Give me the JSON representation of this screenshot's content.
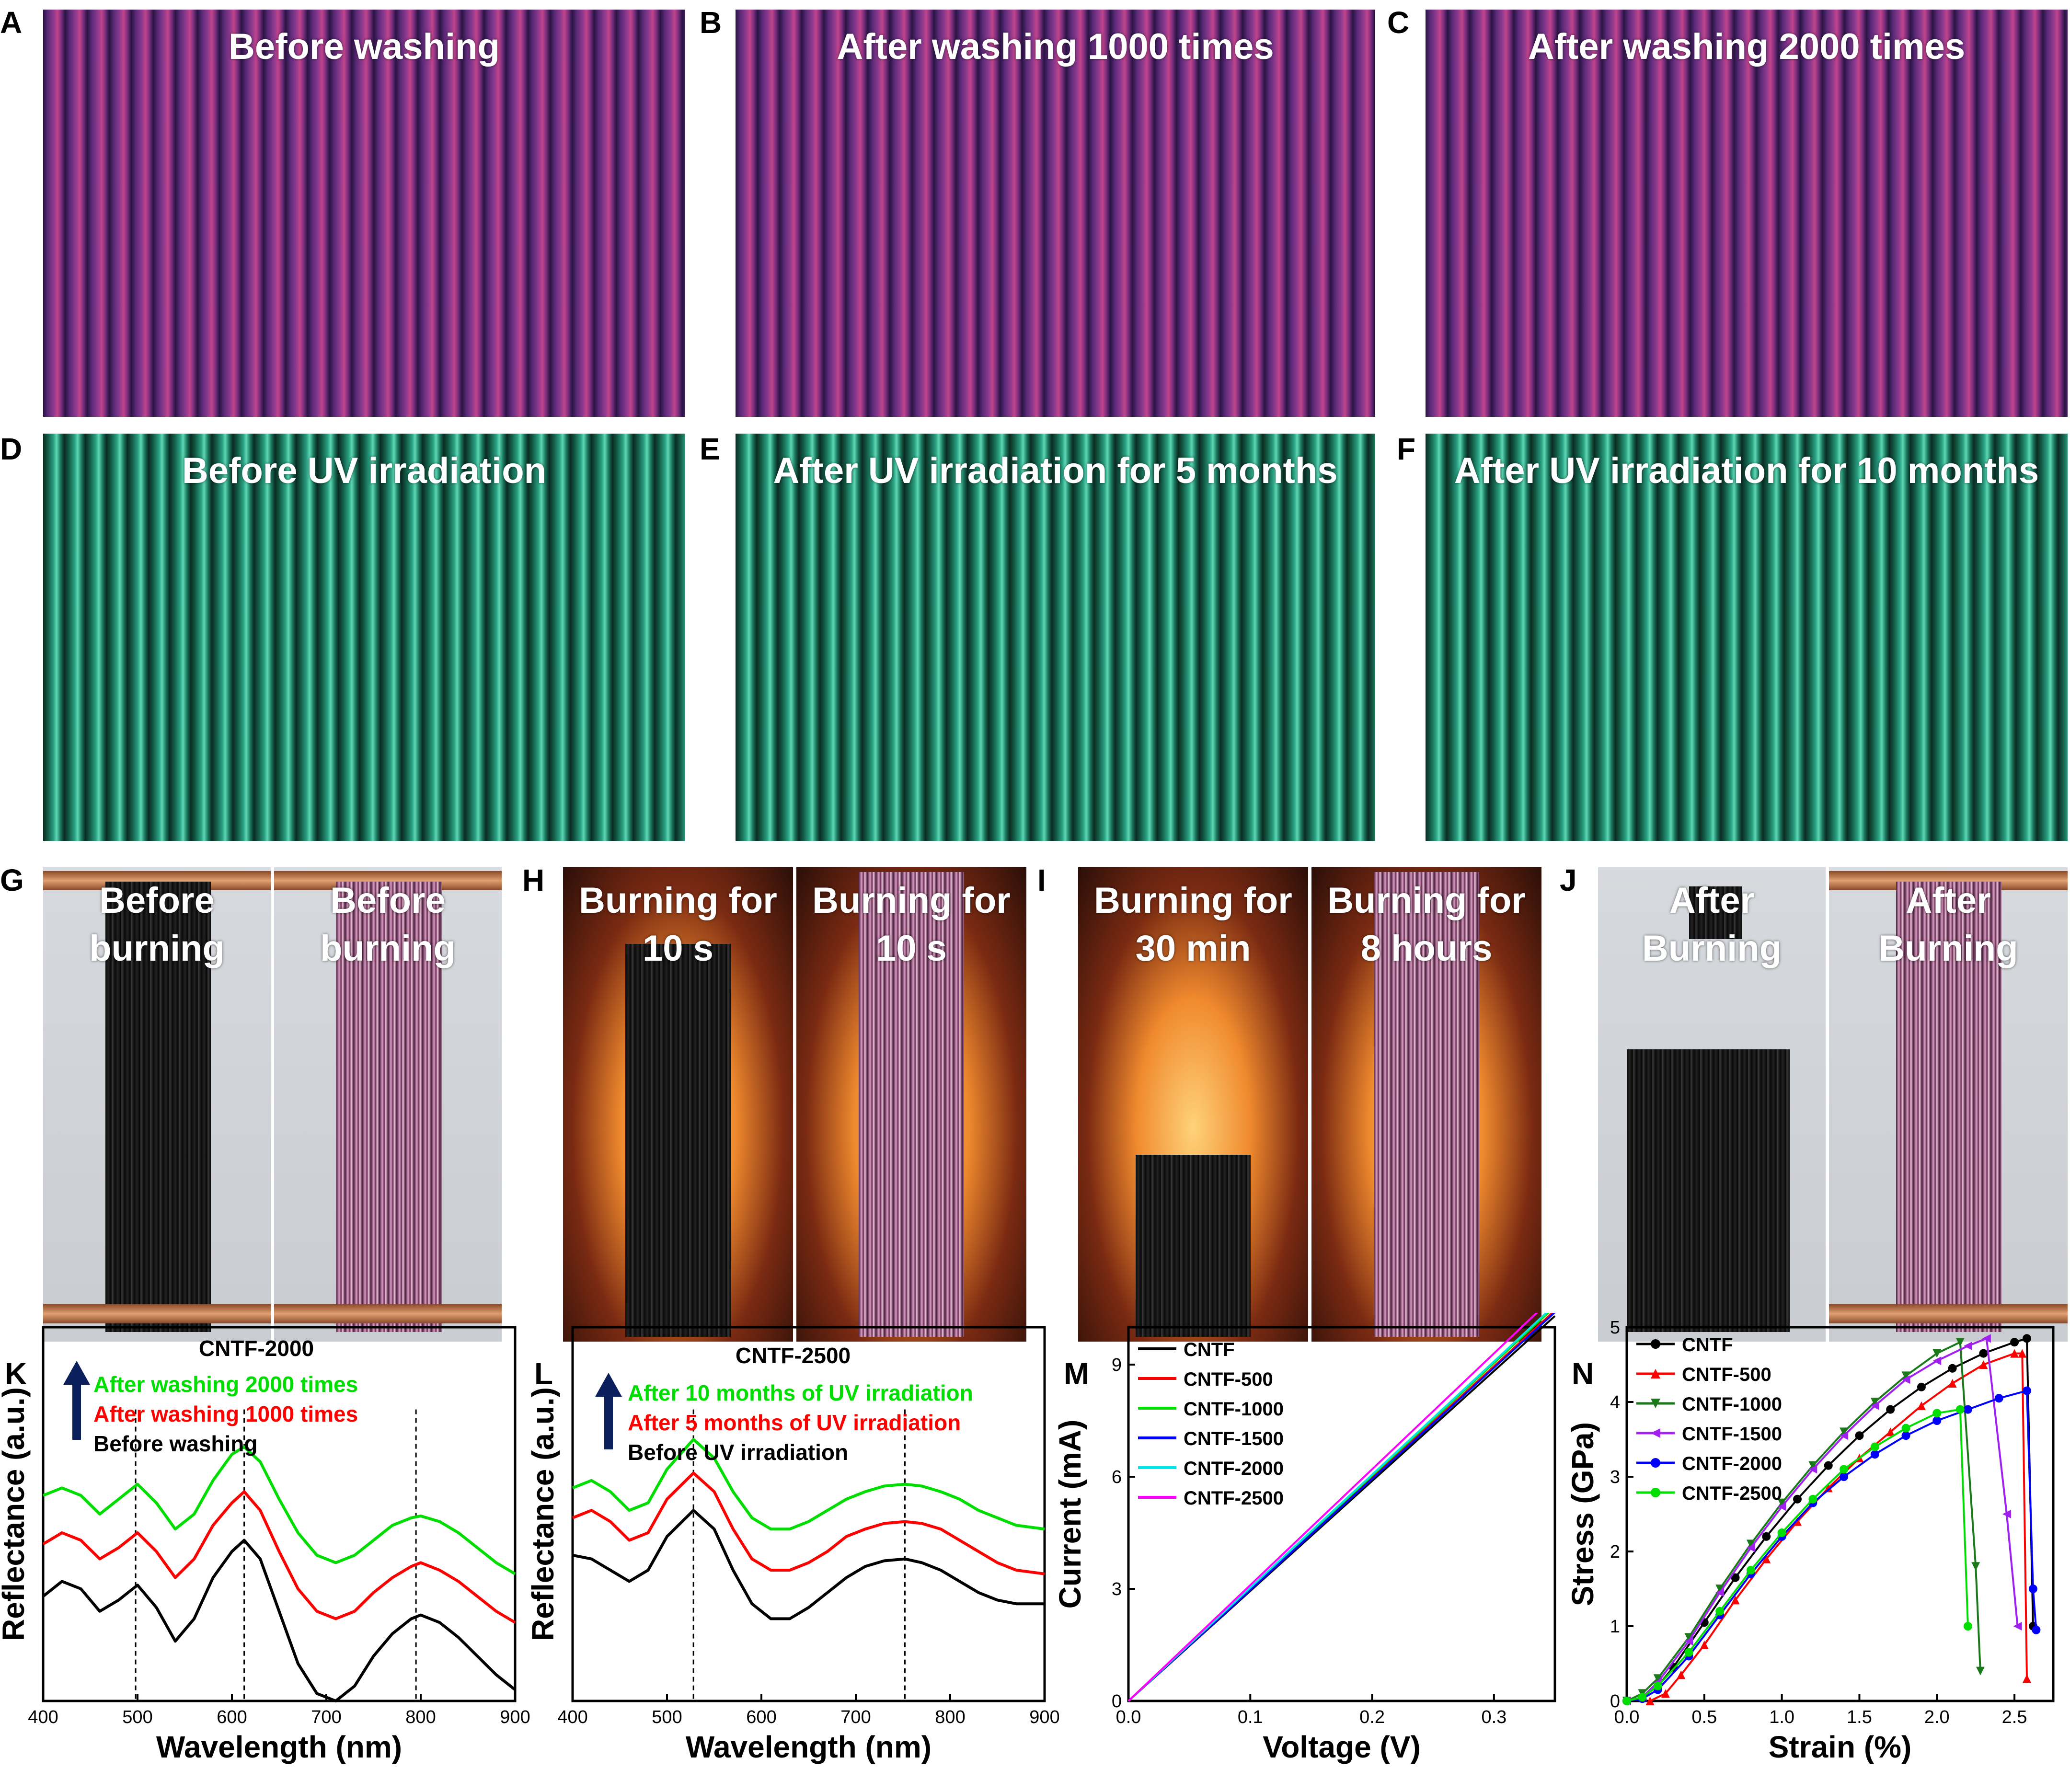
{
  "panels": {
    "A": {
      "letter": "A",
      "title": "Before washing"
    },
    "B": {
      "letter": "B",
      "title": "After washing 1000 times"
    },
    "C": {
      "letter": "C",
      "title": "After washing 2000 times"
    },
    "D": {
      "letter": "D",
      "title": "Before UV irradiation"
    },
    "E": {
      "letter": "E",
      "title": "After UV irradiation for 5 months"
    },
    "F": {
      "letter": "F",
      "title": "After UV irradiation for 10 months"
    },
    "G": {
      "letter": "G",
      "left_title": "Before\nburning",
      "right_title": "Before\nburning"
    },
    "H": {
      "letter": "H",
      "left_title": "Burning for\n10 s",
      "right_title": "Burning for\n10 s"
    },
    "I": {
      "letter": "I",
      "left_title": "Burning for\n30 min",
      "right_title": "Burning for\n8 hours"
    },
    "J": {
      "letter": "J",
      "left_title": "After\nBurning",
      "right_title": "After\nBurning"
    },
    "K": {
      "letter": "K"
    },
    "L": {
      "letter": "L"
    },
    "M": {
      "letter": "M"
    },
    "N": {
      "letter": "N"
    }
  },
  "colors": {
    "black": "#000000",
    "red": "#ff0000",
    "green": "#00dd00",
    "blue": "#0000ff",
    "cyan": "#00e5e5",
    "magenta": "#ff00ff",
    "navy": "#0a1f5c",
    "violet": "#a020f0",
    "dkgreen": "#1a7a1a"
  },
  "chart_data": [
    {
      "panel": "K",
      "type": "line",
      "title": "CNTF-2000",
      "xlabel": "Wavelength (nm)",
      "ylabel": "Reflectance (a.u.)",
      "xlim": [
        400,
        900
      ],
      "xticks": [
        400,
        500,
        600,
        700,
        800,
        900
      ],
      "ylim": [
        0,
        10
      ],
      "dashed_lines_x": [
        498,
        613,
        795
      ],
      "legend": [
        {
          "label": "After washing 2000 times",
          "color": "#00dd00"
        },
        {
          "label": "After washing 1000 times",
          "color": "#ff0000"
        },
        {
          "label": "Before washing",
          "color": "#000000"
        }
      ],
      "series": [
        {
          "color": "#00dd00",
          "x": [
            400,
            420,
            440,
            460,
            480,
            500,
            520,
            540,
            560,
            580,
            600,
            613,
            630,
            650,
            670,
            690,
            710,
            730,
            750,
            770,
            790,
            800,
            820,
            840,
            860,
            880,
            900
          ],
          "values": [
            5.5,
            5.7,
            5.5,
            5.0,
            5.4,
            5.8,
            5.3,
            4.6,
            5.0,
            5.9,
            6.6,
            6.8,
            6.4,
            5.4,
            4.5,
            3.9,
            3.7,
            3.9,
            4.3,
            4.7,
            4.9,
            4.95,
            4.8,
            4.5,
            4.1,
            3.7,
            3.4
          ]
        },
        {
          "color": "#ff0000",
          "x": [
            400,
            420,
            440,
            460,
            480,
            500,
            520,
            540,
            560,
            580,
            600,
            613,
            630,
            650,
            670,
            690,
            710,
            730,
            750,
            770,
            790,
            800,
            820,
            840,
            860,
            880,
            900
          ],
          "values": [
            4.2,
            4.5,
            4.3,
            3.8,
            4.1,
            4.5,
            4.0,
            3.3,
            3.8,
            4.7,
            5.3,
            5.6,
            5.1,
            4.0,
            3.0,
            2.4,
            2.2,
            2.4,
            2.9,
            3.3,
            3.6,
            3.7,
            3.5,
            3.2,
            2.8,
            2.4,
            2.1
          ]
        },
        {
          "color": "#000000",
          "x": [
            400,
            420,
            440,
            460,
            480,
            500,
            520,
            540,
            560,
            580,
            600,
            613,
            630,
            650,
            670,
            690,
            710,
            730,
            750,
            770,
            790,
            800,
            820,
            840,
            860,
            880,
            900
          ],
          "values": [
            2.8,
            3.2,
            3.0,
            2.4,
            2.7,
            3.1,
            2.5,
            1.6,
            2.2,
            3.3,
            4.0,
            4.3,
            3.8,
            2.4,
            1.0,
            0.2,
            0.0,
            0.4,
            1.2,
            1.8,
            2.2,
            2.3,
            2.1,
            1.7,
            1.2,
            0.7,
            0.3
          ]
        }
      ]
    },
    {
      "panel": "L",
      "type": "line",
      "title": "CNTF-2500",
      "xlabel": "Wavelength (nm)",
      "ylabel": "Reflectance (a.u.)",
      "xlim": [
        400,
        900
      ],
      "xticks": [
        400,
        500,
        600,
        700,
        800,
        900
      ],
      "ylim": [
        0,
        10
      ],
      "dashed_lines_x": [
        528,
        752
      ],
      "legend": [
        {
          "label": "After 10 months of UV irradiation",
          "color": "#00dd00"
        },
        {
          "label": "After 5 months of UV irradiation",
          "color": "#ff0000"
        },
        {
          "label": "Before UV irradiation",
          "color": "#000000"
        }
      ],
      "series": [
        {
          "color": "#00dd00",
          "x": [
            400,
            420,
            440,
            460,
            480,
            500,
            528,
            550,
            570,
            590,
            610,
            630,
            650,
            670,
            690,
            710,
            730,
            752,
            770,
            790,
            810,
            830,
            850,
            870,
            900
          ],
          "values": [
            5.7,
            5.9,
            5.6,
            5.1,
            5.3,
            6.2,
            7.0,
            6.5,
            5.6,
            4.9,
            4.6,
            4.6,
            4.8,
            5.1,
            5.4,
            5.6,
            5.75,
            5.8,
            5.75,
            5.6,
            5.4,
            5.1,
            4.9,
            4.7,
            4.6
          ]
        },
        {
          "color": "#ff0000",
          "x": [
            400,
            420,
            440,
            460,
            480,
            500,
            528,
            550,
            570,
            590,
            610,
            630,
            650,
            670,
            690,
            710,
            730,
            752,
            770,
            790,
            810,
            830,
            850,
            870,
            900
          ],
          "values": [
            4.9,
            5.1,
            4.8,
            4.3,
            4.5,
            5.4,
            6.1,
            5.6,
            4.6,
            3.8,
            3.5,
            3.5,
            3.7,
            4.0,
            4.4,
            4.6,
            4.75,
            4.8,
            4.75,
            4.6,
            4.3,
            4.0,
            3.7,
            3.5,
            3.4
          ]
        },
        {
          "color": "#000000",
          "x": [
            400,
            420,
            440,
            460,
            480,
            500,
            528,
            550,
            570,
            590,
            610,
            630,
            650,
            670,
            690,
            710,
            730,
            752,
            770,
            790,
            810,
            830,
            850,
            870,
            900
          ],
          "values": [
            3.9,
            3.8,
            3.5,
            3.2,
            3.5,
            4.4,
            5.1,
            4.6,
            3.5,
            2.6,
            2.2,
            2.2,
            2.5,
            2.9,
            3.3,
            3.6,
            3.75,
            3.8,
            3.7,
            3.5,
            3.2,
            2.9,
            2.7,
            2.6,
            2.6
          ]
        }
      ]
    },
    {
      "panel": "M",
      "type": "line",
      "xlabel": "Voltage (V)",
      "ylabel": "Current (mA)",
      "xlim": [
        0.0,
        0.35
      ],
      "ylim": [
        0,
        10
      ],
      "xticks": [
        0.0,
        0.1,
        0.2,
        0.3
      ],
      "yticks": [
        0,
        3,
        6,
        9
      ],
      "series": [
        {
          "name": "CNTF",
          "color": "#000000",
          "x": [
            0,
            0.35
          ],
          "values": [
            0,
            10.3
          ]
        },
        {
          "name": "CNTF-500",
          "color": "#ff0000",
          "x": [
            0,
            0.35
          ],
          "values": [
            0,
            10.45
          ]
        },
        {
          "name": "CNTF-1000",
          "color": "#00dd00",
          "x": [
            0,
            0.35
          ],
          "values": [
            0,
            10.55
          ]
        },
        {
          "name": "CNTF-1500",
          "color": "#0000ff",
          "x": [
            0,
            0.35
          ],
          "values": [
            0,
            10.4
          ]
        },
        {
          "name": "CNTF-2000",
          "color": "#00e5e5",
          "x": [
            0,
            0.35
          ],
          "values": [
            0,
            10.6
          ]
        },
        {
          "name": "CNTF-2500",
          "color": "#ff00ff",
          "x": [
            0,
            0.35
          ],
          "values": [
            0,
            10.85
          ]
        }
      ]
    },
    {
      "panel": "N",
      "type": "line",
      "xlabel": "Strain (%)",
      "ylabel": "Stress (GPa)",
      "xlim": [
        0.0,
        2.75
      ],
      "ylim": [
        0,
        5
      ],
      "xticks": [
        0.0,
        0.5,
        1.0,
        1.5,
        2.0,
        2.5
      ],
      "yticks": [
        0,
        1,
        2,
        3,
        4,
        5
      ],
      "series": [
        {
          "name": "CNTF",
          "color": "#000000",
          "marker": "circle",
          "x": [
            0.0,
            0.1,
            0.2,
            0.3,
            0.5,
            0.7,
            0.9,
            1.1,
            1.3,
            1.5,
            1.7,
            1.9,
            2.1,
            2.3,
            2.5,
            2.58,
            2.62
          ],
          "values": [
            0,
            0.05,
            0.2,
            0.45,
            1.05,
            1.65,
            2.2,
            2.7,
            3.15,
            3.55,
            3.9,
            4.2,
            4.45,
            4.65,
            4.8,
            4.85,
            1.0
          ]
        },
        {
          "name": "CNTF-500",
          "color": "#ff0000",
          "marker": "triangle-up",
          "x": [
            0.15,
            0.25,
            0.35,
            0.5,
            0.7,
            0.9,
            1.1,
            1.3,
            1.5,
            1.7,
            1.9,
            2.1,
            2.3,
            2.5,
            2.55,
            2.58
          ],
          "values": [
            0,
            0.1,
            0.35,
            0.75,
            1.35,
            1.9,
            2.4,
            2.85,
            3.25,
            3.6,
            3.95,
            4.25,
            4.5,
            4.65,
            4.65,
            0.3
          ]
        },
        {
          "name": "CNTF-1000",
          "color": "#1a7a1a",
          "marker": "triangle-down",
          "x": [
            0.0,
            0.1,
            0.2,
            0.4,
            0.6,
            0.8,
            1.0,
            1.2,
            1.4,
            1.6,
            1.8,
            2.0,
            2.15,
            2.25,
            2.28
          ],
          "values": [
            0,
            0.1,
            0.3,
            0.85,
            1.5,
            2.1,
            2.65,
            3.15,
            3.6,
            4.0,
            4.35,
            4.65,
            4.8,
            1.8,
            0.4
          ]
        },
        {
          "name": "CNTF-1500",
          "color": "#a020f0",
          "marker": "triangle-left",
          "x": [
            0.0,
            0.1,
            0.2,
            0.4,
            0.6,
            0.8,
            1.0,
            1.2,
            1.4,
            1.6,
            1.8,
            2.0,
            2.2,
            2.32,
            2.45,
            2.52
          ],
          "values": [
            0,
            0.05,
            0.25,
            0.8,
            1.45,
            2.05,
            2.6,
            3.1,
            3.55,
            3.95,
            4.3,
            4.55,
            4.75,
            4.85,
            2.5,
            1.0
          ]
        },
        {
          "name": "CNTF-2000",
          "color": "#0000ff",
          "marker": "circle",
          "x": [
            0.0,
            0.1,
            0.2,
            0.4,
            0.6,
            0.8,
            1.0,
            1.2,
            1.4,
            1.6,
            1.8,
            2.0,
            2.2,
            2.4,
            2.58,
            2.62,
            2.64
          ],
          "values": [
            0,
            0.03,
            0.15,
            0.6,
            1.15,
            1.7,
            2.2,
            2.65,
            3.0,
            3.3,
            3.55,
            3.75,
            3.9,
            4.05,
            4.15,
            1.5,
            0.95
          ]
        },
        {
          "name": "CNTF-2500",
          "color": "#00dd00",
          "marker": "circle",
          "x": [
            0.0,
            0.1,
            0.2,
            0.4,
            0.6,
            0.8,
            1.0,
            1.2,
            1.4,
            1.6,
            1.8,
            2.0,
            2.15,
            2.2
          ],
          "values": [
            0,
            0.05,
            0.2,
            0.65,
            1.2,
            1.75,
            2.25,
            2.7,
            3.1,
            3.4,
            3.65,
            3.85,
            3.9,
            1.0
          ]
        }
      ]
    }
  ]
}
